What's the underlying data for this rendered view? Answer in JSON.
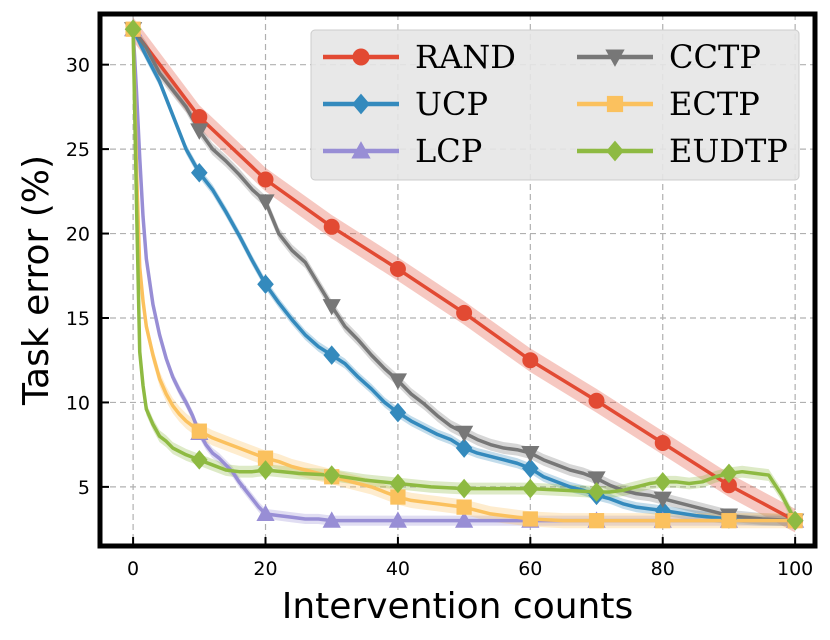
{
  "chart_data": {
    "type": "line",
    "title": "",
    "xlabel": "Intervention counts",
    "ylabel": "Task error (%)",
    "xlim": [
      -5,
      103
    ],
    "ylim": [
      1.5,
      33
    ],
    "xticks": [
      0,
      20,
      40,
      60,
      80,
      100
    ],
    "yticks": [
      5,
      10,
      15,
      20,
      25,
      30
    ],
    "grid": true,
    "legend": {
      "position": "top-right",
      "columns": 2
    },
    "series": [
      {
        "name": "RAND",
        "color": "#e24a33",
        "marker": "circle",
        "band": 0.7,
        "x": [
          0,
          10,
          20,
          30,
          40,
          50,
          60,
          70,
          80,
          90,
          100
        ],
        "values": [
          32.1,
          26.9,
          23.2,
          20.4,
          17.9,
          15.3,
          12.5,
          10.1,
          7.6,
          5.1,
          3.0
        ],
        "marker_x": [
          10,
          20,
          30,
          40,
          50,
          60,
          70,
          80,
          90,
          100
        ]
      },
      {
        "name": "UCP",
        "color": "#348abd",
        "marker": "diamond",
        "band": 0.3,
        "x": [
          0,
          2,
          4,
          6,
          8,
          10,
          12,
          14,
          16,
          18,
          20,
          22,
          24,
          26,
          28,
          30,
          32,
          34,
          36,
          38,
          40,
          42,
          44,
          46,
          48,
          50,
          52,
          54,
          56,
          58,
          60,
          62,
          64,
          66,
          68,
          70,
          72,
          74,
          76,
          78,
          80,
          85,
          90,
          95,
          100
        ],
        "values": [
          32.1,
          30.5,
          29.0,
          27.0,
          25.0,
          23.6,
          22.6,
          21.3,
          19.9,
          18.4,
          17.0,
          15.9,
          14.9,
          14.0,
          13.3,
          12.8,
          12.3,
          11.5,
          10.8,
          10.0,
          9.4,
          8.9,
          8.5,
          8.1,
          7.8,
          7.3,
          7.0,
          6.8,
          6.6,
          6.4,
          6.1,
          5.6,
          5.3,
          5.0,
          4.8,
          4.5,
          4.3,
          4.0,
          3.8,
          3.7,
          3.6,
          3.3,
          3.1,
          3.0,
          3.0
        ],
        "marker_x": [
          0,
          10,
          20,
          30,
          40,
          50,
          60,
          70,
          80,
          90,
          100
        ]
      },
      {
        "name": "LCP",
        "color": "#988ed5",
        "marker": "triangle-up",
        "band": 0.3,
        "x": [
          0,
          0.5,
          1,
          1.5,
          2,
          3,
          4,
          5,
          6,
          7,
          8,
          9,
          10,
          11,
          12,
          13,
          14,
          15,
          16,
          17,
          18,
          19,
          20,
          22,
          24,
          26,
          28,
          30,
          35,
          40,
          50,
          60,
          70,
          80,
          90,
          100
        ],
        "values": [
          32.1,
          28.5,
          24.5,
          21.0,
          18.5,
          15.8,
          14.0,
          12.6,
          11.5,
          10.7,
          10.0,
          9.2,
          8.2,
          7.5,
          7.0,
          6.7,
          6.3,
          5.9,
          5.3,
          4.8,
          4.3,
          3.8,
          3.4,
          3.3,
          3.2,
          3.1,
          3.1,
          3.0,
          3.0,
          3.0,
          3.0,
          3.0,
          3.0,
          3.0,
          3.0,
          3.0
        ],
        "marker_x": [
          0,
          10,
          20,
          30,
          40,
          50,
          60,
          70,
          80,
          90,
          100
        ]
      },
      {
        "name": "CCTP",
        "color": "#777777",
        "marker": "triangle-down",
        "band": 0.35,
        "x": [
          0,
          2,
          4,
          6,
          8,
          10,
          12,
          14,
          16,
          18,
          20,
          22,
          24,
          26,
          28,
          30,
          32,
          34,
          36,
          38,
          40,
          42,
          44,
          46,
          48,
          50,
          52,
          54,
          56,
          58,
          60,
          62,
          64,
          66,
          68,
          70,
          72,
          74,
          76,
          78,
          80,
          85,
          90,
          95,
          100
        ],
        "values": [
          32.1,
          31.0,
          29.5,
          28.5,
          27.5,
          26.1,
          25.0,
          24.3,
          23.5,
          22.6,
          21.9,
          20.0,
          19.0,
          18.3,
          17.0,
          15.7,
          14.5,
          13.7,
          12.8,
          12.0,
          11.3,
          10.5,
          9.9,
          9.2,
          8.6,
          8.2,
          7.8,
          7.5,
          7.3,
          7.2,
          7.0,
          6.6,
          6.3,
          6.0,
          5.8,
          5.5,
          5.1,
          4.8,
          4.6,
          4.5,
          4.3,
          3.8,
          3.3,
          3.1,
          3.0
        ],
        "marker_x": [
          0,
          10,
          20,
          30,
          40,
          50,
          60,
          70,
          80,
          90,
          100
        ]
      },
      {
        "name": "ECTP",
        "color": "#fbc15e",
        "marker": "square",
        "band": 0.45,
        "x": [
          0,
          0.5,
          1,
          1.5,
          2,
          3,
          4,
          5,
          6,
          7,
          8,
          9,
          10,
          12,
          14,
          16,
          18,
          20,
          22,
          24,
          26,
          28,
          30,
          32,
          34,
          36,
          38,
          40,
          42,
          44,
          46,
          48,
          50,
          52,
          54,
          56,
          58,
          60,
          65,
          70,
          75,
          80,
          85,
          90,
          95,
          100
        ],
        "values": [
          32.1,
          24.0,
          18.0,
          16.0,
          14.5,
          12.8,
          11.4,
          10.5,
          9.8,
          9.3,
          8.9,
          8.6,
          8.3,
          7.9,
          7.6,
          7.3,
          7.0,
          6.7,
          6.5,
          6.2,
          6.0,
          5.8,
          5.6,
          5.4,
          5.2,
          5.0,
          4.7,
          4.4,
          4.2,
          4.1,
          4.0,
          3.9,
          3.8,
          3.6,
          3.4,
          3.3,
          3.2,
          3.1,
          3.0,
          3.0,
          3.0,
          3.0,
          3.0,
          3.0,
          3.0,
          3.0
        ],
        "marker_x": [
          0,
          10,
          20,
          30,
          40,
          50,
          60,
          70,
          80,
          90,
          100
        ]
      },
      {
        "name": "EUDTP",
        "color": "#8eba42",
        "marker": "diamond",
        "band": 0.35,
        "x": [
          0,
          0.5,
          1,
          1.5,
          2,
          3,
          4,
          5,
          6,
          8,
          10,
          12,
          14,
          16,
          18,
          20,
          25,
          30,
          35,
          40,
          45,
          50,
          55,
          60,
          65,
          70,
          72,
          74,
          76,
          78,
          80,
          82,
          84,
          86,
          88,
          90,
          92,
          94,
          96,
          98,
          100
        ],
        "values": [
          32.1,
          22.0,
          13.0,
          11.0,
          9.6,
          8.7,
          8.0,
          7.7,
          7.3,
          6.9,
          6.6,
          6.3,
          6.0,
          5.9,
          5.9,
          6.0,
          5.8,
          5.7,
          5.4,
          5.2,
          5.0,
          4.9,
          4.9,
          4.9,
          4.8,
          4.7,
          4.7,
          4.8,
          5.0,
          5.2,
          5.3,
          5.3,
          5.2,
          5.3,
          5.6,
          5.8,
          5.9,
          5.8,
          5.7,
          4.5,
          3.0
        ],
        "marker_x": [
          0,
          10,
          20,
          30,
          40,
          50,
          60,
          70,
          80,
          90,
          100
        ]
      }
    ]
  }
}
